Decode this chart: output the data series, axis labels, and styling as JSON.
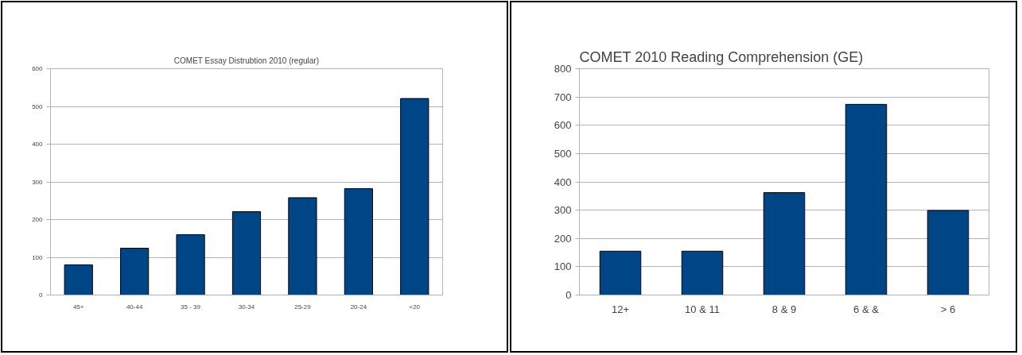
{
  "chart_data": [
    {
      "type": "bar",
      "title": "COMET Essay Distrubtion 2010 (regular)",
      "categories": [
        "45+",
        "40-44",
        "35 - 39",
        "30-34",
        "25-29",
        "20-24",
        "<20"
      ],
      "values": [
        80,
        124,
        160,
        221,
        258,
        282,
        521
      ],
      "color": "#004586",
      "ylim": [
        0,
        600
      ],
      "yticks": [
        0,
        100,
        200,
        300,
        400,
        500,
        600
      ],
      "grid": "y"
    },
    {
      "type": "bar",
      "title": "COMET 2010 Reading Comprehension (GE)",
      "categories": [
        "12+",
        "10 & 11",
        "8 & 9",
        "6 & &",
        "> 6"
      ],
      "values": [
        155,
        155,
        362,
        674,
        299
      ],
      "color": "#004586",
      "ylim": [
        0,
        800
      ],
      "yticks": [
        0,
        100,
        200,
        300,
        400,
        500,
        600,
        700,
        800
      ],
      "grid": "y"
    }
  ]
}
